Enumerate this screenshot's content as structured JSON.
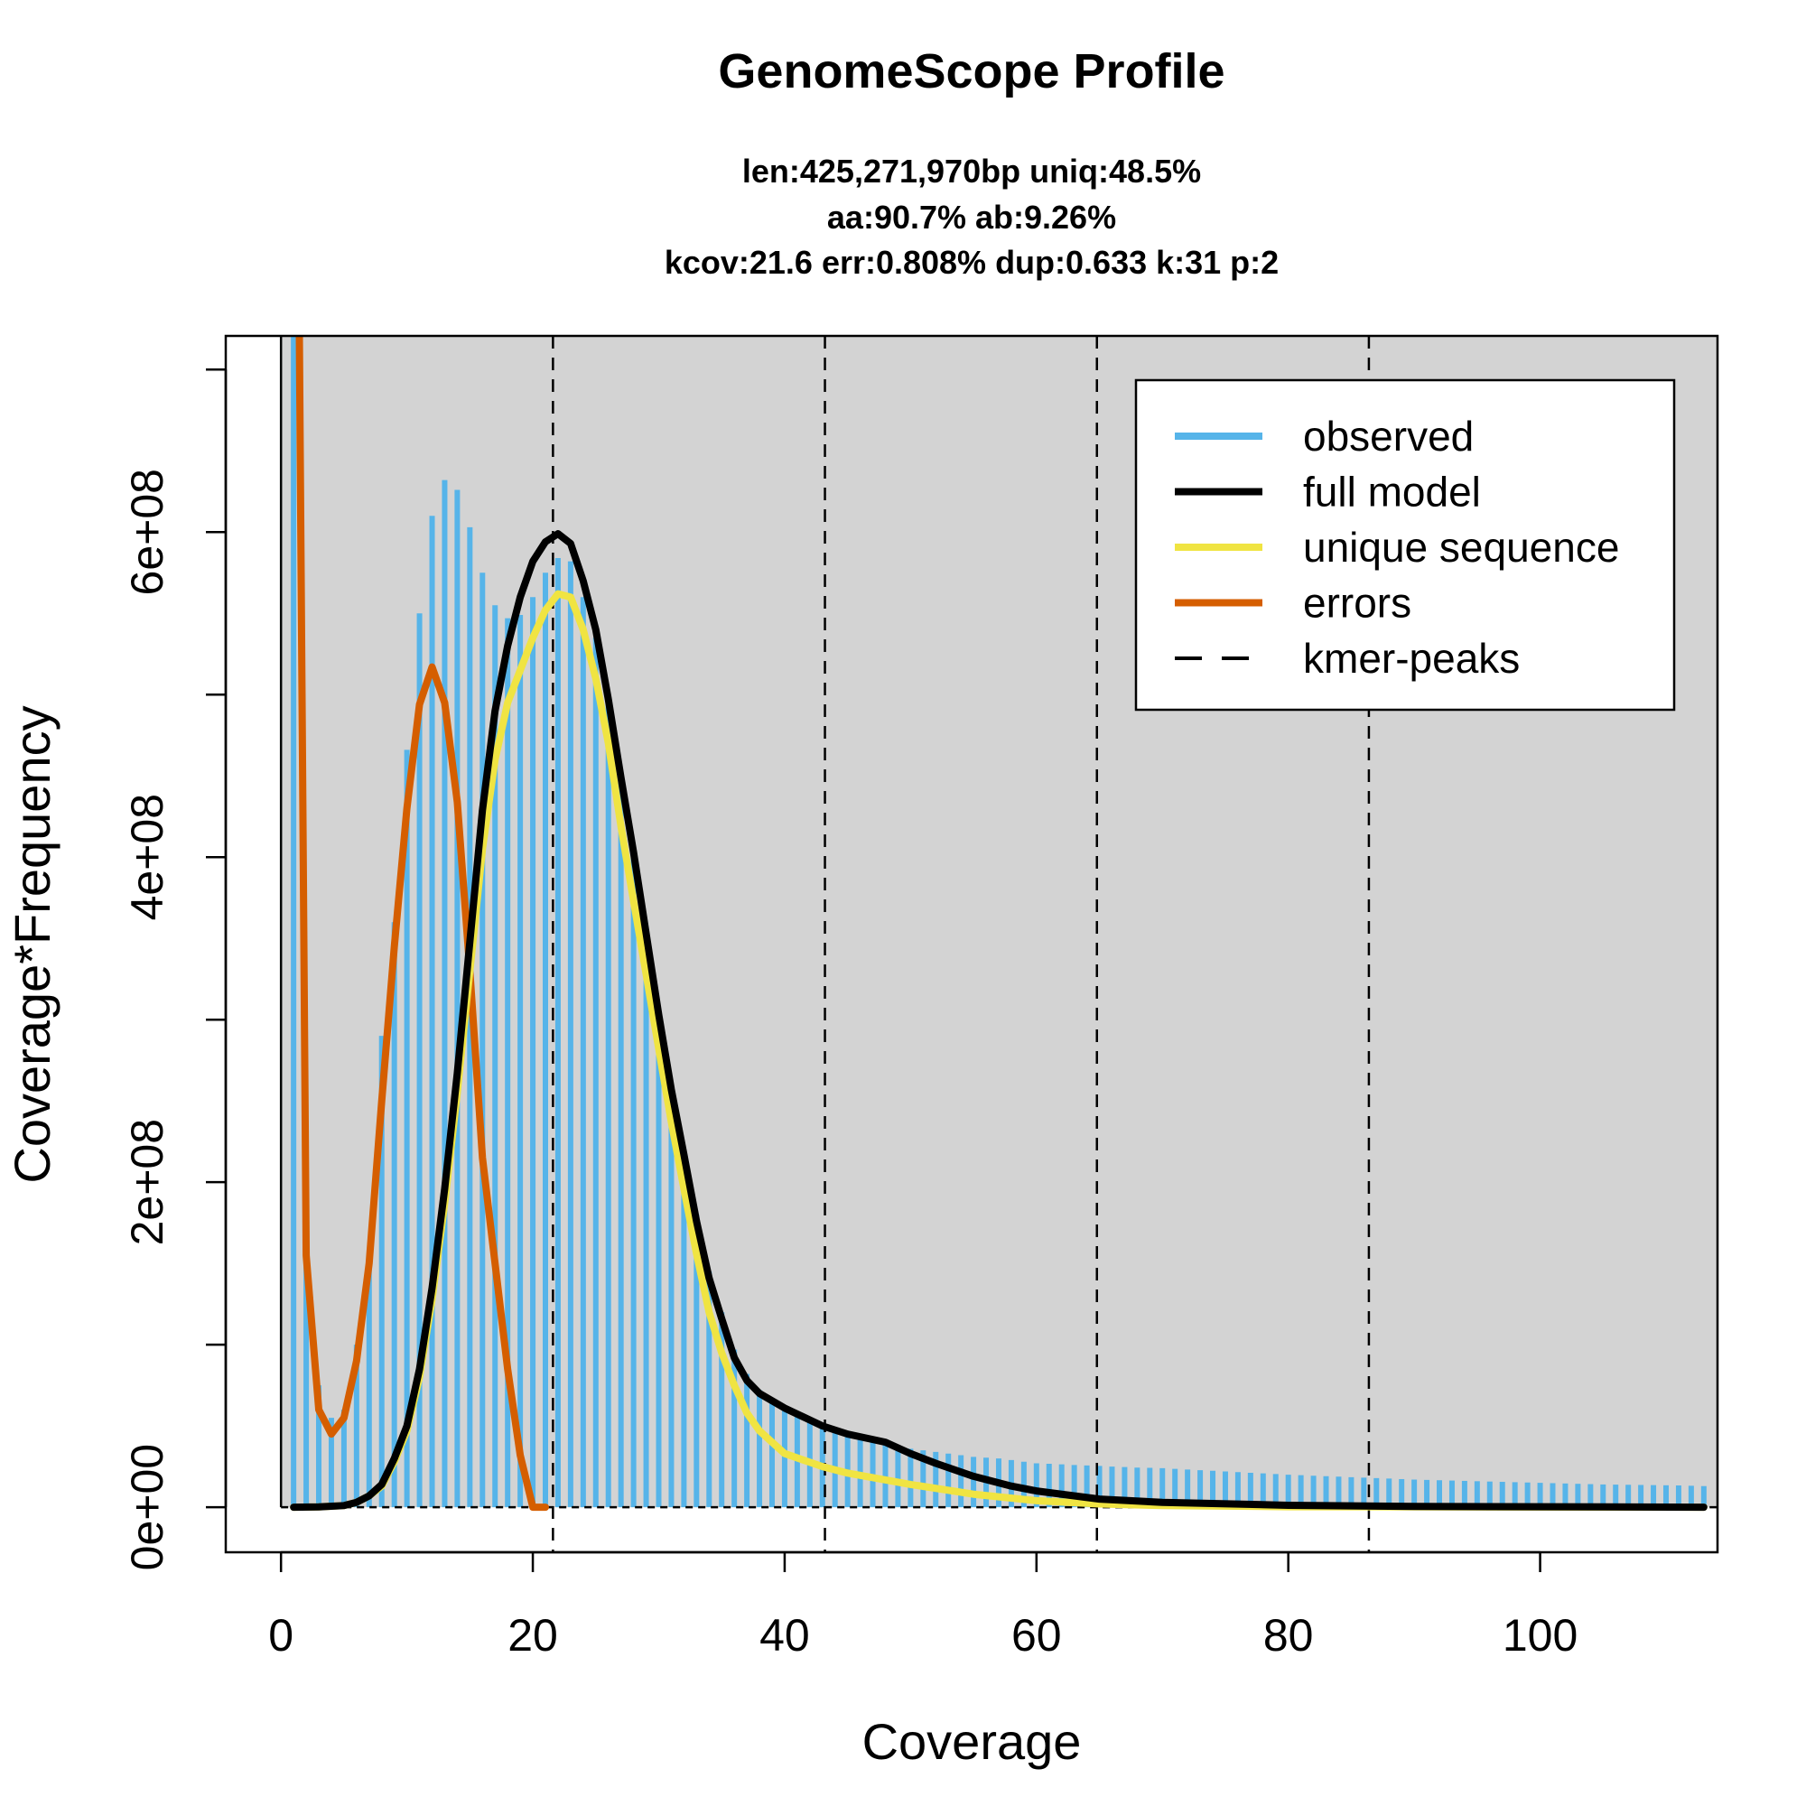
{
  "chart_data": {
    "type": "bar",
    "title": "GenomeScope Profile",
    "subtitle_lines": [
      "len:425,271,970bp uniq:48.5%",
      "aa:90.7% ab:9.26%",
      "kcov:21.6 err:0.808%  dup:0.633  k:31 p:2"
    ],
    "xlabel": "Coverage",
    "ylabel": "Coverage*Frequency",
    "xlim": [
      0,
      109.7
    ],
    "ylim": [
      0,
      693000000
    ],
    "x_ticks": [
      0,
      20,
      40,
      60,
      80,
      100
    ],
    "x_tick_labels": [
      "0",
      "20",
      "40",
      "60",
      "80",
      "100"
    ],
    "y_ticks": [
      0,
      100000000,
      200000000,
      300000000,
      400000000,
      500000000,
      600000000,
      700000000
    ],
    "y_tick_labels": [
      "0e+00",
      "",
      "2e+08",
      "",
      "4e+08",
      "",
      "6e+08",
      ""
    ],
    "legend": {
      "position": "top-right",
      "entries": [
        {
          "label": "observed",
          "color": "#56B4E9",
          "style": "solid"
        },
        {
          "label": "full model",
          "color": "#000000",
          "style": "solid"
        },
        {
          "label": "unique sequence",
          "color": "#F0E442",
          "style": "solid"
        },
        {
          "label": "errors",
          "color": "#D55E00",
          "style": "solid"
        },
        {
          "label": "kmer-peaks",
          "color": "#000000",
          "style": "dashed"
        }
      ]
    },
    "kmer_peaks": [
      21.6,
      43.2,
      64.8,
      86.4
    ],
    "colors": {
      "background": "#D3D3D3",
      "observed": "#56B4E9",
      "full": "#000000",
      "unique": "#F0E442",
      "errors": "#D55E00"
    },
    "units": 100000000,
    "observed": {
      "x_start": 1,
      "values": [
        15,
        1.6,
        0.75,
        0.55,
        0.6,
        1.0,
        1.5,
        2.9,
        3.6,
        4.66,
        5.5,
        6.1,
        6.32,
        6.26,
        6.03,
        5.75,
        5.55,
        5.47,
        5.49,
        5.6,
        5.75,
        5.84,
        5.82,
        5.6,
        5.35,
        4.95,
        4.5,
        4.05,
        3.55,
        3.05,
        2.6,
        2.2,
        1.8,
        1.45,
        1.2,
        0.97,
        0.82,
        0.72,
        0.65,
        0.6,
        0.56,
        0.53,
        0.5,
        0.48,
        0.46,
        0.44,
        0.42,
        0.4,
        0.38,
        0.36,
        0.35,
        0.34,
        0.33,
        0.32,
        0.31,
        0.305,
        0.3,
        0.29,
        0.28,
        0.27,
        0.267,
        0.264,
        0.26,
        0.257,
        0.254,
        0.25,
        0.247,
        0.244,
        0.242,
        0.24,
        0.236,
        0.232,
        0.228,
        0.224,
        0.22,
        0.216,
        0.212,
        0.208,
        0.204,
        0.2,
        0.197,
        0.194,
        0.191,
        0.188,
        0.185,
        0.182,
        0.179,
        0.176,
        0.173,
        0.17,
        0.168,
        0.166,
        0.164,
        0.162,
        0.16,
        0.158,
        0.156,
        0.154,
        0.152,
        0.15,
        0.148,
        0.146,
        0.144,
        0.142,
        0.14,
        0.139,
        0.138,
        0.137,
        0.136,
        0.135,
        0.134,
        0.132,
        0.13
      ]
    },
    "full_model": {
      "x": [
        1,
        3,
        5,
        6,
        7,
        8,
        9,
        10,
        11,
        12,
        13,
        14,
        15,
        16,
        17,
        18,
        19,
        20,
        21,
        22,
        23,
        24,
        25,
        26,
        27,
        28,
        29,
        30,
        31,
        32,
        33,
        34,
        35,
        36,
        37,
        38,
        40,
        43,
        45,
        48,
        50,
        52,
        55,
        58,
        60,
        65,
        70,
        80,
        90,
        113
      ],
      "y": [
        0,
        0.002,
        0.01,
        0.03,
        0.07,
        0.14,
        0.3,
        0.5,
        0.85,
        1.35,
        1.96,
        2.67,
        3.48,
        4.29,
        4.9,
        5.3,
        5.6,
        5.82,
        5.94,
        5.99,
        5.93,
        5.7,
        5.4,
        4.97,
        4.49,
        4.03,
        3.53,
        3.03,
        2.57,
        2.17,
        1.76,
        1.41,
        1.16,
        0.92,
        0.78,
        0.7,
        0.61,
        0.5,
        0.45,
        0.4,
        0.33,
        0.27,
        0.19,
        0.13,
        0.1,
        0.05,
        0.03,
        0.012,
        0.005,
        0
      ]
    },
    "unique_sequence": {
      "x": [
        1,
        3,
        5,
        6,
        7,
        8,
        9,
        10,
        11,
        12,
        13,
        14,
        15,
        16,
        17,
        18,
        19,
        20,
        21,
        22,
        23,
        24,
        25,
        26,
        27,
        28,
        29,
        30,
        31,
        32,
        33,
        34,
        35,
        36,
        37,
        38,
        40,
        43,
        45,
        50,
        55,
        60,
        65,
        70,
        80,
        113
      ],
      "y": [
        0,
        0.002,
        0.01,
        0.03,
        0.07,
        0.13,
        0.28,
        0.47,
        0.8,
        1.28,
        1.87,
        2.55,
        3.3,
        4.05,
        4.6,
        4.95,
        5.15,
        5.35,
        5.52,
        5.62,
        5.6,
        5.4,
        5.1,
        4.7,
        4.19,
        3.73,
        3.28,
        2.82,
        2.37,
        1.96,
        1.56,
        1.2,
        0.95,
        0.75,
        0.58,
        0.47,
        0.33,
        0.25,
        0.21,
        0.14,
        0.08,
        0.04,
        0.02,
        0.01,
        0.003,
        0
      ]
    },
    "errors": {
      "x": [
        1,
        2,
        3,
        4,
        5,
        6,
        7,
        8,
        9,
        10,
        11,
        12,
        13,
        14,
        15,
        16,
        17,
        18,
        19,
        20,
        21
      ],
      "y": [
        12,
        1.55,
        0.6,
        0.45,
        0.55,
        0.9,
        1.5,
        2.5,
        3.45,
        4.3,
        4.94,
        5.17,
        4.95,
        4.34,
        3.3,
        2.15,
        1.5,
        0.85,
        0.32,
        0,
        0
      ]
    }
  }
}
